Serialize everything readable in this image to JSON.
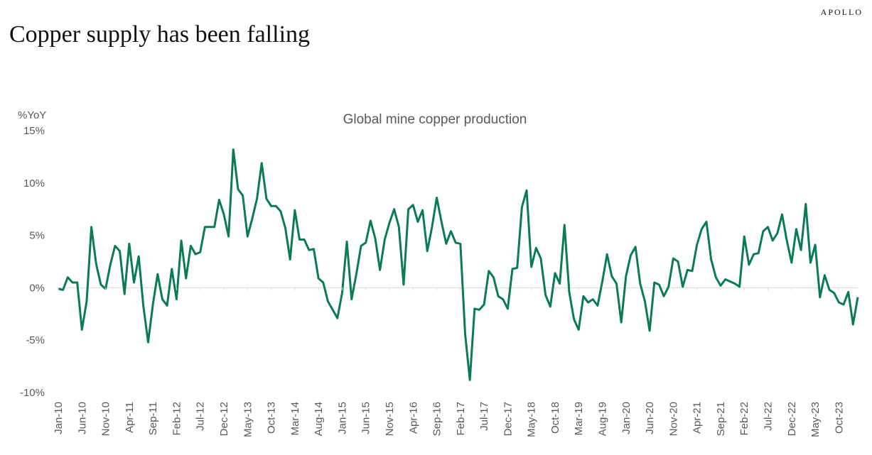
{
  "brand": "APOLLO",
  "headline": "Copper supply has been falling",
  "colors": {
    "line": "#0a7a5a",
    "zero_line": "#d9d9d9",
    "text": "#595959"
  },
  "chart_data": {
    "type": "line",
    "title": "Global mine copper production",
    "ylabel": "%YoY",
    "xlabel": "",
    "ylim": [
      -10,
      15
    ],
    "yticks": [
      15,
      10,
      5,
      0,
      -5,
      -10
    ],
    "ytick_labels": [
      "15%",
      "10%",
      "5%",
      "0%",
      "-5%",
      "-10%"
    ],
    "x_start": "Jan-10",
    "xtick_labels": [
      "Jan-10",
      "Jun-10",
      "Nov-10",
      "Apr-11",
      "Sep-11",
      "Feb-12",
      "Jul-12",
      "Dec-12",
      "May-13",
      "Oct-13",
      "Mar-14",
      "Aug-14",
      "Jan-15",
      "Jun-15",
      "Nov-15",
      "Apr-16",
      "Sep-16",
      "Feb-17",
      "Jul-17",
      "Dec-17",
      "May-18",
      "Oct-18",
      "Mar-19",
      "Aug-19",
      "Jan-20",
      "Jun-20",
      "Nov-20",
      "Apr-21",
      "Sep-21",
      "Feb-22",
      "Jul-22",
      "Dec-22",
      "May-23",
      "Oct-23"
    ],
    "xtick_every_months": 5,
    "grid": false,
    "series": [
      {
        "name": "Global mine copper production",
        "values": [
          -0.1,
          -0.2,
          1.0,
          0.5,
          0.5,
          -4.0,
          -1.3,
          5.8,
          2.3,
          0.3,
          -0.1,
          2.2,
          4.0,
          3.5,
          -0.6,
          4.2,
          0.5,
          3.0,
          -1.8,
          -5.2,
          -1.6,
          1.3,
          -1.1,
          -1.7,
          1.8,
          -1.1,
          4.5,
          0.9,
          4.0,
          3.2,
          3.4,
          5.8,
          5.8,
          5.8,
          8.4,
          7.0,
          4.9,
          13.2,
          9.4,
          8.8,
          4.9,
          6.6,
          8.5,
          11.9,
          8.5,
          7.8,
          7.8,
          7.3,
          5.7,
          2.7,
          7.4,
          4.6,
          4.6,
          3.6,
          3.7,
          0.9,
          0.5,
          -1.3,
          -2.1,
          -2.9,
          -0.5,
          4.4,
          -1.1,
          1.3,
          4.0,
          4.3,
          6.4,
          4.7,
          1.7,
          4.6,
          6.2,
          7.5,
          5.8,
          0.3,
          7.5,
          7.9,
          6.3,
          7.4,
          3.5,
          5.8,
          8.6,
          6.3,
          4.2,
          5.4,
          4.3,
          4.2,
          -4.4,
          -8.8,
          -2.0,
          -2.1,
          -1.6,
          1.6,
          1.0,
          -0.8,
          -1.1,
          -2.0,
          1.8,
          1.9,
          7.7,
          9.3,
          2.0,
          3.8,
          2.8,
          -0.7,
          -1.8,
          1.4,
          0.4,
          6.0,
          -0.4,
          -3.0,
          -4.0,
          -0.8,
          -1.4,
          -1.1,
          -1.7,
          0.6,
          3.2,
          1.1,
          0.4,
          -3.3,
          1.1,
          3.1,
          3.9,
          0.4,
          -1.3,
          -4.1,
          0.5,
          0.3,
          -0.8,
          0.1,
          2.8,
          2.5,
          0.1,
          1.7,
          1.6,
          4.1,
          5.6,
          6.3,
          2.7,
          1.0,
          0.2,
          0.8,
          0.6,
          0.4,
          0.1,
          4.9,
          2.2,
          3.2,
          3.3,
          5.4,
          5.8,
          4.5,
          5.2,
          7.0,
          4.5,
          2.4,
          5.6,
          3.6,
          8.0,
          2.4,
          4.1,
          -0.9,
          1.2,
          -0.2,
          -0.5,
          -1.4,
          -1.6,
          -0.4,
          -3.5,
          -0.9
        ]
      }
    ]
  }
}
